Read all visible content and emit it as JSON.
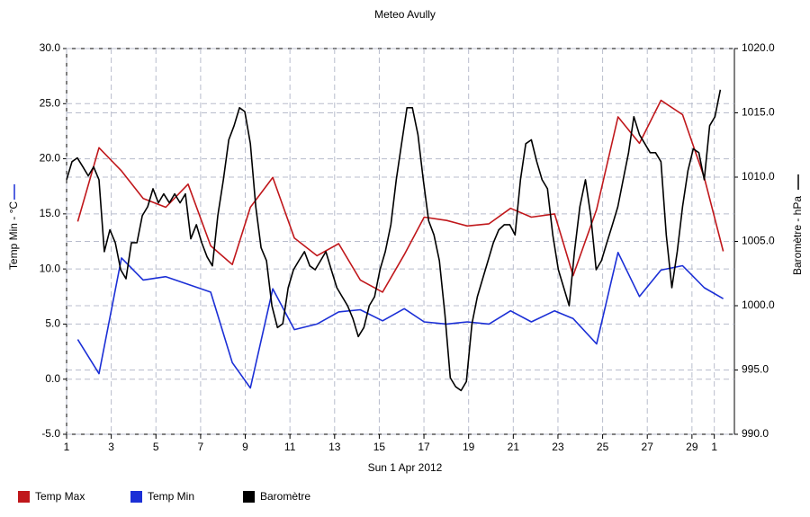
{
  "chart_data": {
    "type": "line",
    "title": "Meteo  Avully",
    "x_label": "Sun 1 Apr 2012",
    "y_label": "Temp Min - °C",
    "y2_label": "Baromètre - hPa",
    "xlim": [
      1,
      30.9
    ],
    "xticks": [
      1,
      3,
      5,
      7,
      9,
      11,
      13,
      15,
      17,
      19,
      21,
      23,
      25,
      27,
      29,
      {
        "value": 30,
        "label": "1"
      }
    ],
    "ylim": [
      -5,
      30
    ],
    "yticks": [
      {
        "value": -5,
        "label": "-5.0"
      },
      {
        "value": 0,
        "label": "0.0"
      },
      {
        "value": 5,
        "label": "5.0"
      },
      {
        "value": 10,
        "label": "10.0"
      },
      {
        "value": 15,
        "label": "15.0"
      },
      {
        "value": 20,
        "label": "20.0"
      },
      {
        "value": 25,
        "label": "25.0"
      },
      {
        "value": 30,
        "label": "30.0"
      }
    ],
    "y2lim": [
      990,
      1020
    ],
    "y2ticks": [
      {
        "value": 990,
        "label": "990.0"
      },
      {
        "value": 995,
        "label": "995.0"
      },
      {
        "value": 1000,
        "label": "1000.0"
      },
      {
        "value": 1005,
        "label": "1005.0"
      },
      {
        "value": 1010,
        "label": "1010.0"
      },
      {
        "value": 1015,
        "label": "1015.0"
      },
      {
        "value": 1020,
        "label": "1020.0"
      }
    ],
    "grid": true,
    "legend": "bottom",
    "series": [
      {
        "name": "Temp Max",
        "color": "#c0171b",
        "x": [
          1.5,
          2.45,
          3.46,
          4.43,
          5.44,
          6.44,
          7.45,
          8.42,
          9.23,
          10.23,
          11.2,
          12.21,
          13.18,
          14.15,
          15.15,
          16.12,
          17.01,
          18.02,
          18.94,
          19.91,
          20.88,
          21.81,
          22.85,
          23.68,
          24.73,
          25.69,
          26.65,
          27.61,
          28.58,
          29.55,
          30.4
        ],
        "values": [
          14.3,
          21.0,
          18.9,
          16.4,
          15.6,
          17.7,
          12.1,
          10.4,
          15.6,
          18.3,
          12.8,
          11.2,
          12.3,
          9.0,
          7.9,
          11.3,
          14.7,
          14.4,
          13.9,
          14.1,
          15.5,
          14.7,
          15.0,
          9.4,
          15.4,
          23.8,
          21.4,
          25.3,
          24.0,
          18.3,
          11.6
        ]
      },
      {
        "name": "Temp Min",
        "color": "#1b2fd6",
        "x": [
          1.5,
          2.45,
          3.46,
          4.43,
          5.44,
          6.44,
          7.45,
          8.42,
          9.23,
          10.23,
          11.2,
          12.21,
          13.18,
          14.15,
          15.15,
          16.12,
          17.01,
          18.02,
          18.94,
          19.91,
          20.88,
          21.81,
          22.85,
          23.68,
          24.73,
          25.69,
          26.65,
          27.61,
          28.58,
          29.55,
          30.4
        ],
        "values": [
          3.6,
          0.5,
          11.0,
          9.0,
          9.3,
          8.6,
          7.9,
          1.5,
          -0.8,
          8.2,
          4.5,
          5.0,
          6.1,
          6.3,
          5.3,
          6.4,
          5.2,
          5.0,
          5.2,
          5.0,
          6.2,
          5.2,
          6.2,
          5.5,
          3.2,
          11.5,
          7.5,
          9.9,
          10.3,
          8.3,
          7.3
        ]
      },
      {
        "name": "Baromètre",
        "color": "#000000",
        "axis": "y2",
        "x": [
          1.0,
          1.24,
          1.48,
          1.73,
          1.97,
          2.21,
          2.45,
          2.69,
          2.94,
          3.18,
          3.42,
          3.66,
          3.9,
          4.15,
          4.39,
          4.63,
          4.87,
          5.11,
          5.35,
          5.6,
          5.84,
          6.08,
          6.32,
          6.56,
          6.81,
          7.05,
          7.29,
          7.53,
          7.77,
          8.02,
          8.26,
          8.5,
          8.74,
          8.98,
          9.23,
          9.47,
          9.71,
          9.95,
          10.19,
          10.44,
          10.68,
          10.92,
          11.16,
          11.4,
          11.65,
          11.89,
          12.13,
          12.37,
          12.61,
          12.85,
          13.1,
          13.34,
          13.58,
          13.82,
          14.06,
          14.31,
          14.55,
          14.79,
          15.03,
          15.27,
          15.52,
          15.76,
          16.0,
          16.24,
          16.48,
          16.73,
          16.97,
          17.21,
          17.45,
          17.69,
          17.94,
          18.18,
          18.42,
          18.66,
          18.9,
          19.15,
          19.39,
          19.63,
          19.87,
          20.11,
          20.35,
          20.6,
          20.84,
          21.08,
          21.32,
          21.56,
          21.81,
          22.05,
          22.29,
          22.53,
          22.77,
          23.02,
          23.26,
          23.5,
          23.74,
          23.98,
          24.23,
          24.47,
          24.71,
          24.95,
          25.19,
          25.44,
          25.68,
          25.92,
          26.16,
          26.4,
          26.65,
          26.89,
          27.13,
          27.37,
          27.61,
          27.85,
          28.1,
          28.34,
          28.58,
          28.82,
          29.06,
          29.31,
          29.55,
          29.79,
          30.03,
          30.27
        ],
        "values": [
          1009.8,
          1011.2,
          1011.5,
          1010.8,
          1010.1,
          1010.8,
          1009.8,
          1004.2,
          1005.9,
          1004.9,
          1002.8,
          1002.1,
          1004.9,
          1004.9,
          1007.0,
          1007.7,
          1009.1,
          1008.0,
          1008.7,
          1008.0,
          1008.7,
          1008.0,
          1008.7,
          1005.2,
          1006.3,
          1004.9,
          1003.8,
          1003.1,
          1007.0,
          1009.8,
          1012.9,
          1014.0,
          1015.4,
          1015.1,
          1012.6,
          1007.7,
          1004.5,
          1003.5,
          1000.0,
          998.3,
          998.6,
          1001.4,
          1002.8,
          1003.5,
          1004.2,
          1003.1,
          1002.8,
          1003.5,
          1004.2,
          1002.8,
          1001.4,
          1000.7,
          1000.0,
          999.0,
          997.6,
          998.3,
          1000.0,
          1000.7,
          1002.8,
          1004.2,
          1006.3,
          1009.8,
          1012.6,
          1015.4,
          1015.4,
          1013.3,
          1009.8,
          1006.6,
          1005.5,
          1003.5,
          999.3,
          994.4,
          993.7,
          993.4,
          994.1,
          998.6,
          1000.7,
          1002.1,
          1003.5,
          1004.9,
          1005.9,
          1006.3,
          1006.3,
          1005.5,
          1009.8,
          1012.6,
          1012.9,
          1011.2,
          1009.8,
          1009.1,
          1005.5,
          1002.8,
          1001.4,
          1000.0,
          1004.2,
          1007.7,
          1009.8,
          1007.0,
          1002.8,
          1003.5,
          1004.9,
          1006.3,
          1007.7,
          1009.8,
          1011.9,
          1014.7,
          1013.3,
          1012.6,
          1011.9,
          1011.9,
          1011.2,
          1005.5,
          1001.4,
          1004.2,
          1007.7,
          1010.5,
          1012.2,
          1011.9,
          1009.8,
          1014.0,
          1014.7,
          1016.8
        ]
      }
    ]
  }
}
